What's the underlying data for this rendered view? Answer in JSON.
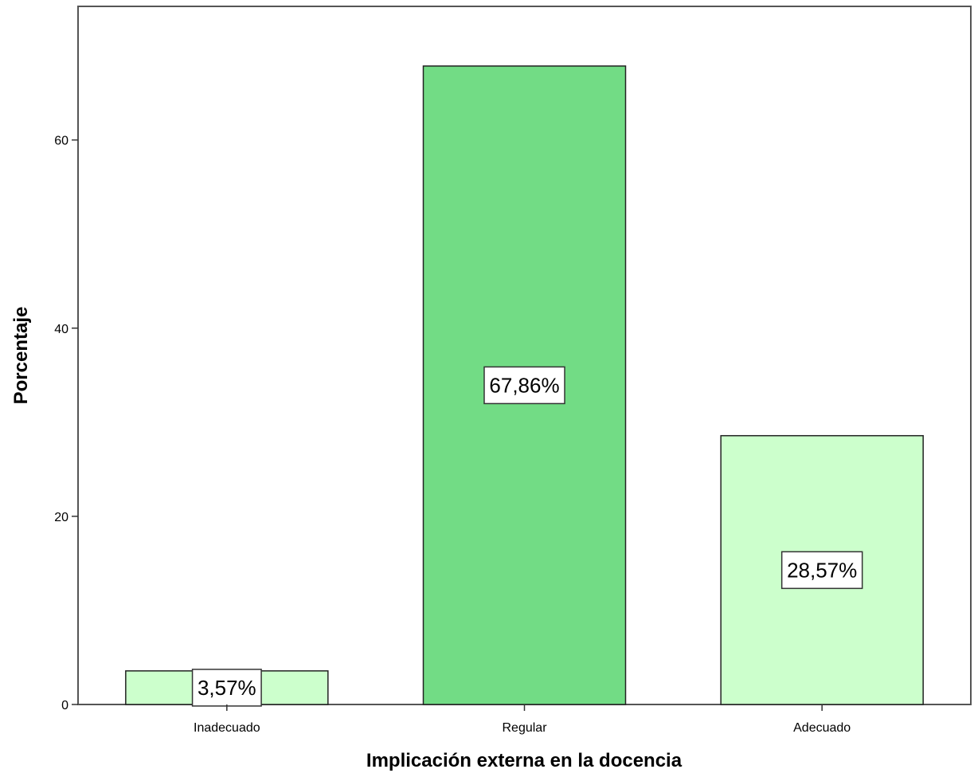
{
  "chart_data": {
    "type": "bar",
    "title": "",
    "xlabel": "Implicación externa en la docencia",
    "ylabel": "Porcentaje",
    "categories": [
      "Inadecuado",
      "Regular",
      "Adecuado"
    ],
    "values": [
      3.57,
      67.86,
      28.57
    ],
    "data_labels": [
      "3,57%",
      "67,86%",
      "28,57%"
    ],
    "bar_colors": [
      "#ccffcc",
      "#72dc85",
      "#ccffcc"
    ],
    "ylim": [
      0,
      74.2
    ],
    "yticks": [
      0,
      20,
      40,
      60
    ],
    "grid": false,
    "legend": "none"
  }
}
